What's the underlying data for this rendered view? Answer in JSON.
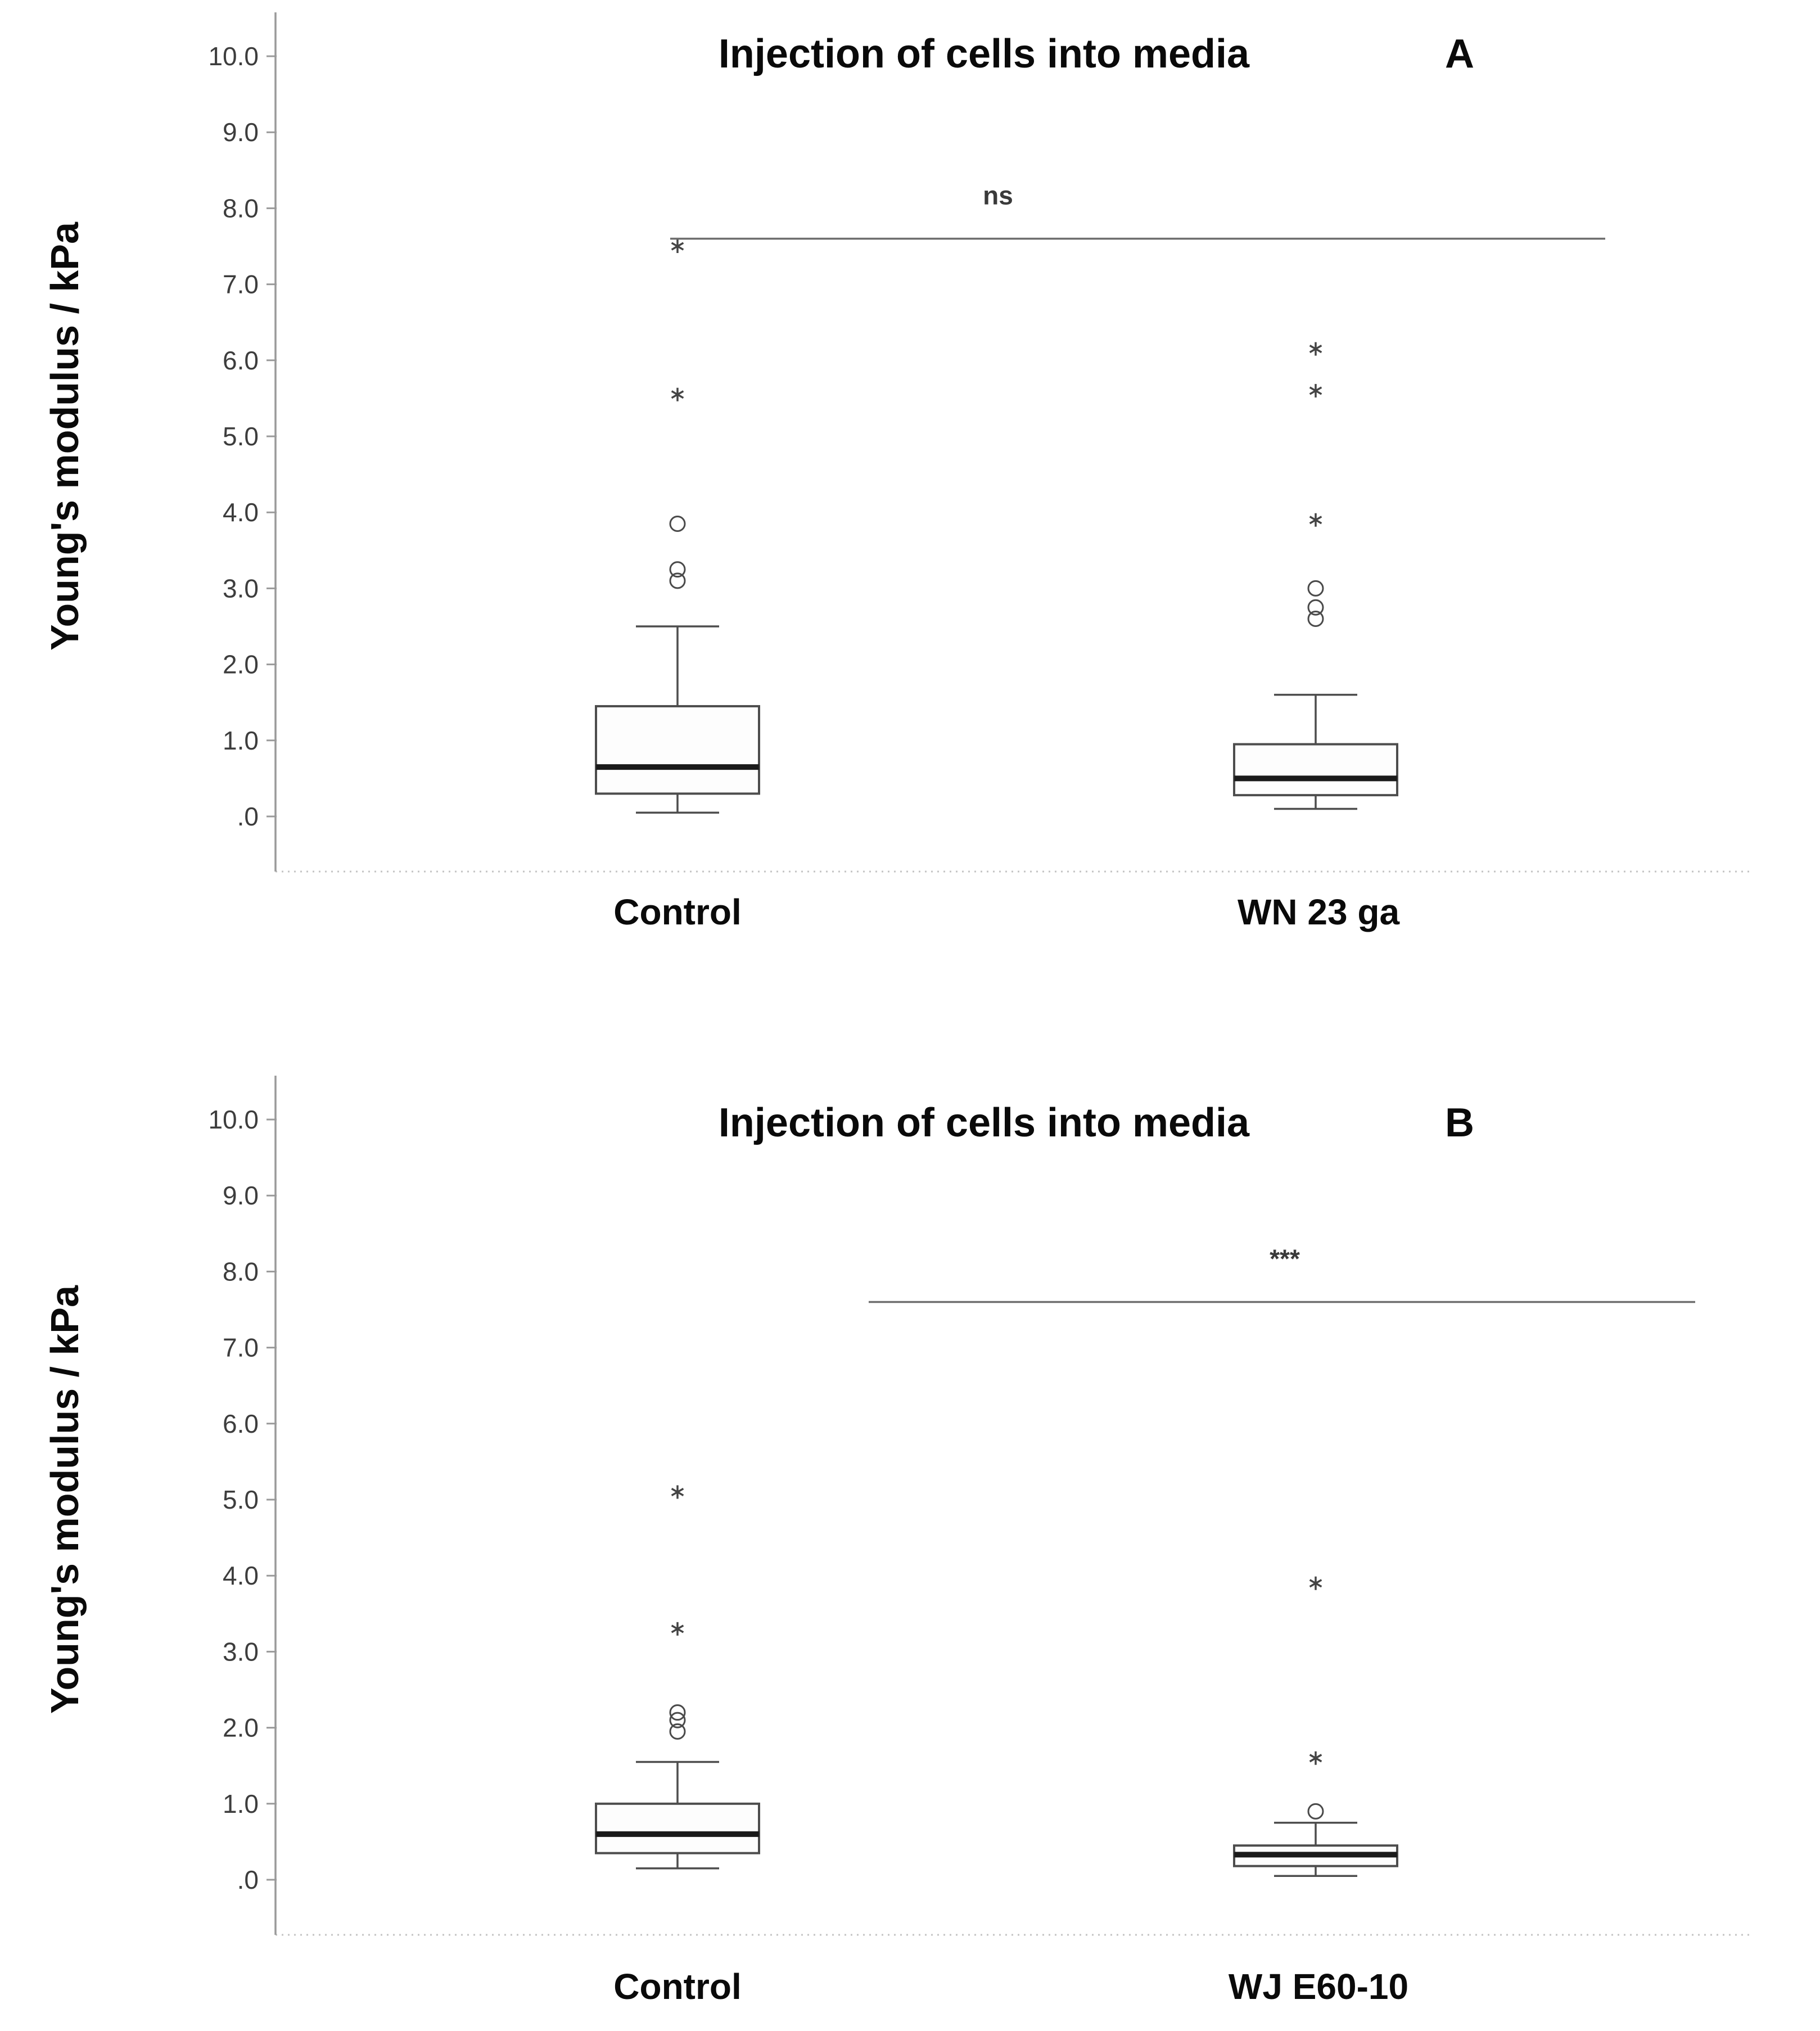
{
  "figure": {
    "shared_title": "Injection of cells into media",
    "shared_ylabel": "Young's modulus / kPa"
  },
  "chart_data": [
    {
      "type": "boxplot",
      "panel_label": "A",
      "title": "Injection of cells into media",
      "xlabel": "",
      "ylabel": "Young's modulus / kPa",
      "ylim": [
        0,
        10.5
      ],
      "grid": false,
      "ytick_values": [
        10,
        9,
        8,
        7,
        6,
        5,
        4,
        3,
        2,
        1,
        0
      ],
      "ytick_labels": [
        "10.0",
        "9.0",
        "8.0",
        "7.0",
        "6.0",
        "5.0",
        "4.0",
        "3.0",
        "2.0",
        "1.0",
        ".0"
      ],
      "categories": [
        "Control",
        "WN 23 ga"
      ],
      "series": [
        {
          "category": "Control",
          "whisker_low": 0.05,
          "q1": 0.3,
          "median": 0.65,
          "q3": 1.45,
          "whisker_high": 2.5,
          "outliers_circle": [
            3.1,
            3.25,
            3.85
          ],
          "outliers_star": [
            5.55,
            7.5
          ]
        },
        {
          "category": "WN 23 ga",
          "whisker_low": 0.1,
          "q1": 0.28,
          "median": 0.5,
          "q3": 0.95,
          "whisker_high": 1.6,
          "outliers_circle": [
            2.6,
            2.75,
            3.0
          ],
          "outliers_star": [
            3.9,
            5.6,
            6.15
          ]
        }
      ],
      "significance": {
        "label": "ns",
        "line_y": 7.6,
        "label_y": 8.05
      }
    },
    {
      "type": "boxplot",
      "panel_label": "B",
      "title": "Injection of cells into media",
      "xlabel": "",
      "ylabel": "Young's modulus / kPa",
      "ylim": [
        0,
        10.5
      ],
      "grid": false,
      "ytick_values": [
        10,
        9,
        8,
        7,
        6,
        5,
        4,
        3,
        2,
        1,
        0
      ],
      "ytick_labels": [
        "10.0",
        "9.0",
        "8.0",
        "7.0",
        "6.0",
        "5.0",
        "4.0",
        "3.0",
        "2.0",
        "1.0",
        ".0"
      ],
      "categories": [
        "Control",
        "WJ E60-10"
      ],
      "series": [
        {
          "category": "Control",
          "whisker_low": 0.15,
          "q1": 0.35,
          "median": 0.6,
          "q3": 1.0,
          "whisker_high": 1.55,
          "outliers_circle": [
            1.95,
            2.1,
            2.2
          ],
          "outliers_star": [
            3.3,
            5.1
          ]
        },
        {
          "category": "WJ E60-10",
          "whisker_low": 0.05,
          "q1": 0.18,
          "median": 0.33,
          "q3": 0.45,
          "whisker_high": 0.75,
          "outliers_circle": [
            0.9
          ],
          "outliers_star": [
            1.6,
            3.9
          ]
        }
      ],
      "significance": {
        "label": "***",
        "line_y": 7.6,
        "label_y": 8.05
      }
    }
  ],
  "style": {
    "box_stroke": "#4d4d4d",
    "median_stroke": "#1a1a1a",
    "axis_stroke": "#9a9a9a",
    "baseline_stroke": "#c4c4c4",
    "tick_label_color": "#3d3d3d",
    "significance_color": "#6e6e6e",
    "background": "#ffffff"
  }
}
